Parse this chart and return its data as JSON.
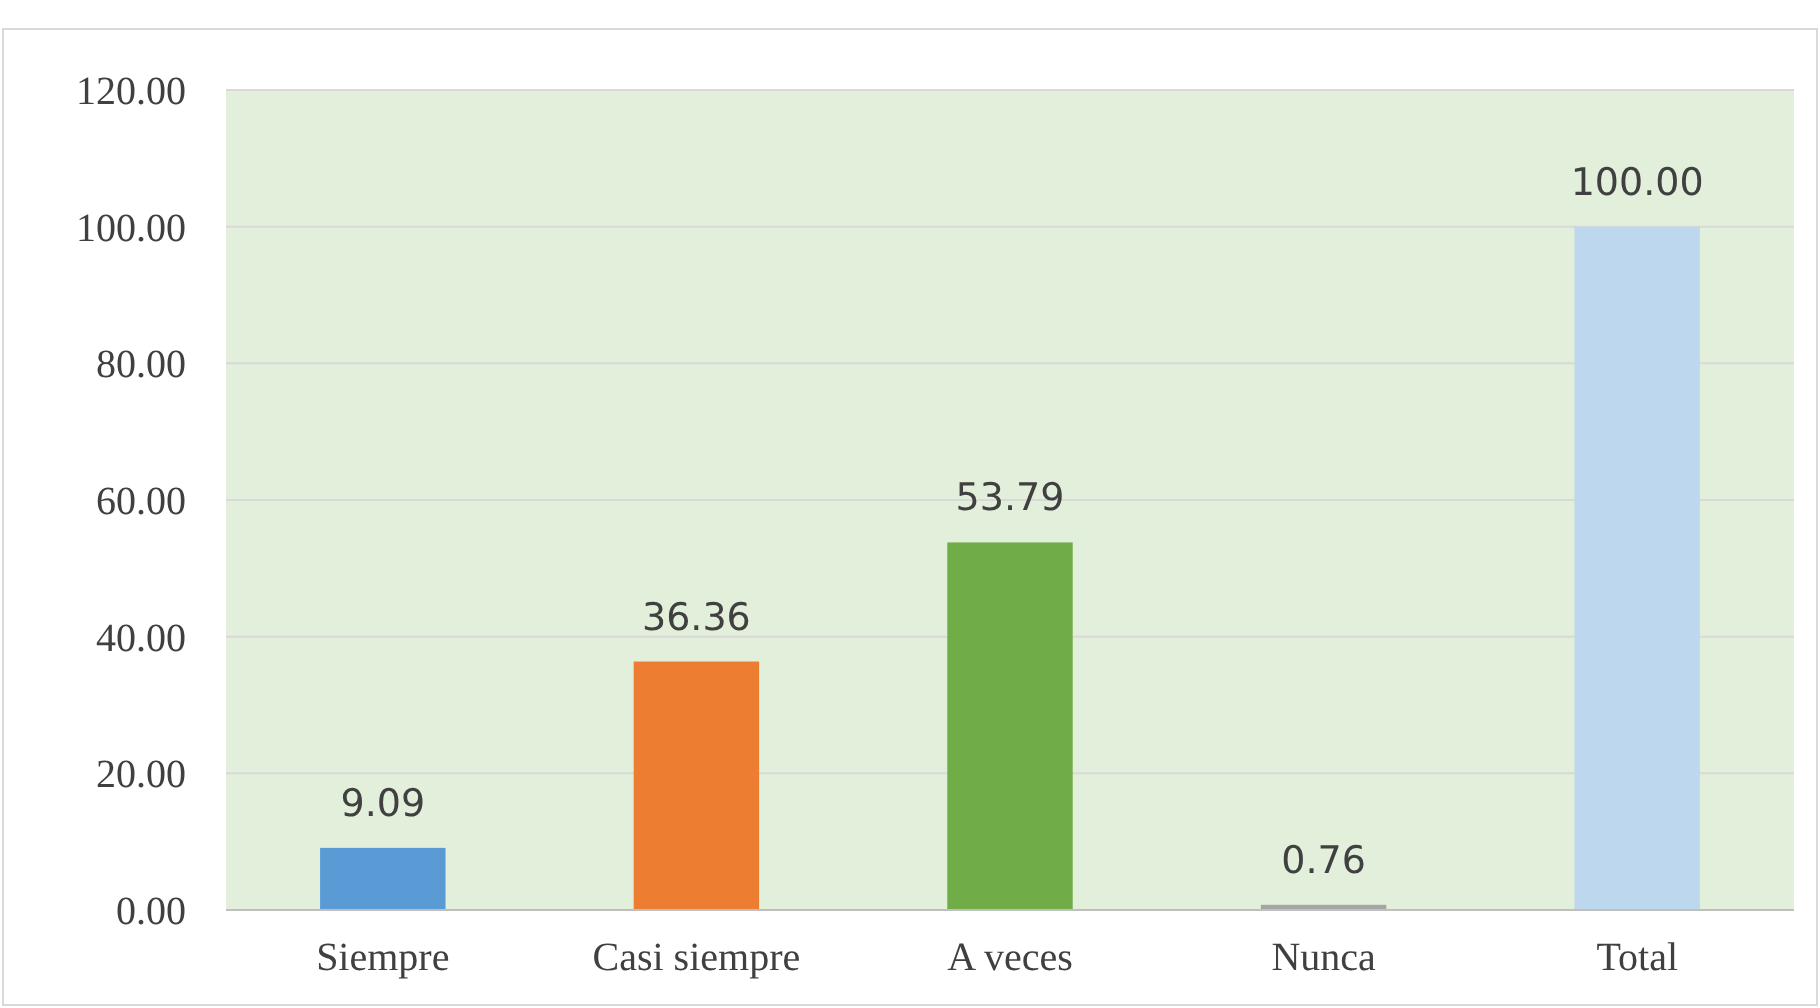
{
  "chart_data": {
    "type": "bar",
    "categories": [
      "Siempre",
      "Casi siempre",
      "A veces",
      "Nunca",
      "Total"
    ],
    "values": [
      9.09,
      36.36,
      53.79,
      0.76,
      100
    ],
    "colors": [
      "#5b9bd5",
      "#ed7d31",
      "#70ad47",
      "#a5a5a5",
      "#bdd7ee"
    ],
    "value_labels": [
      "9.09",
      "36.36",
      "53.79",
      "0.76",
      "100.00"
    ],
    "ylim": [
      0,
      120
    ],
    "yticks": [
      {
        "value": 0,
        "label": "0.00"
      },
      {
        "value": 20,
        "label": "20.00"
      },
      {
        "value": 40,
        "label": "40.00"
      },
      {
        "value": 60,
        "label": "60.00"
      },
      {
        "value": 80,
        "label": "80.00"
      },
      {
        "value": 100,
        "label": "100.00"
      },
      {
        "value": 120,
        "label": "120.00"
      }
    ],
    "grid": "y"
  }
}
